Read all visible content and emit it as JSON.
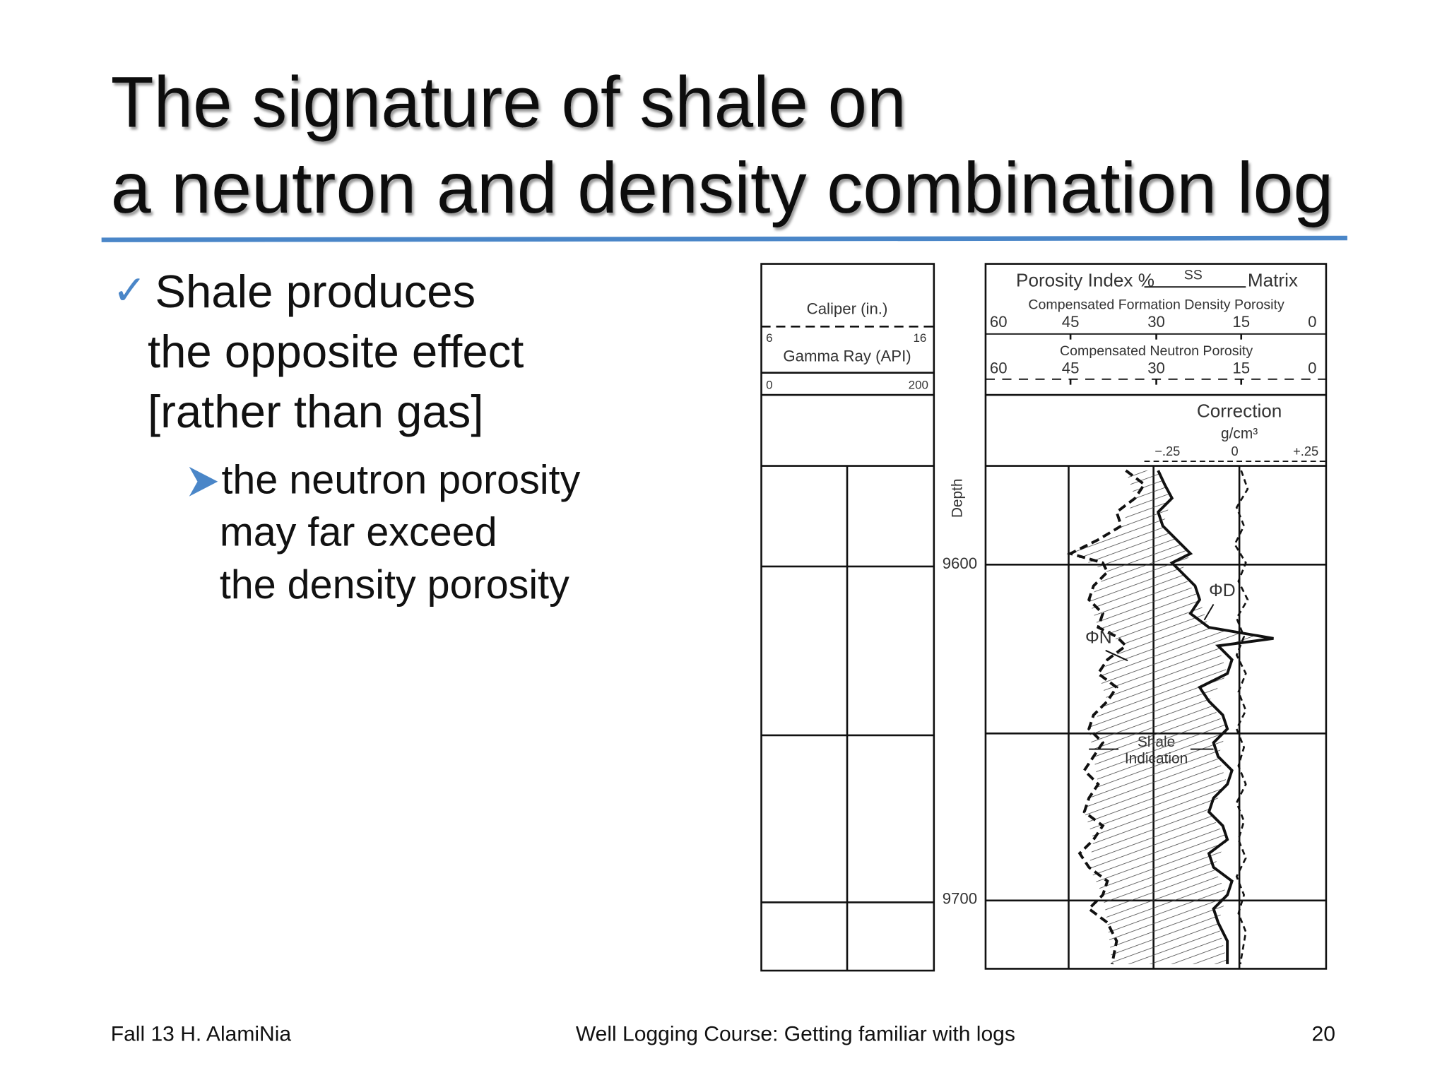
{
  "title": [
    "The signature of shale on",
    "a neutron and density combination log"
  ],
  "bullets": [
    {
      "lines": [
        "Shale produces",
        "the opposite effect",
        "[rather than gas]"
      ],
      "sub": [
        {
          "lines": [
            "the neutron porosity",
            "may far exceed",
            "the density porosity"
          ]
        }
      ]
    }
  ],
  "figure": {
    "caliper": "Caliper (in.)",
    "caliper_scale": [
      "6",
      "16"
    ],
    "gamma_ray": "Gamma Ray (API)",
    "gamma_scale": [
      "0",
      "200"
    ],
    "porosity_index": "Porosity Index %",
    "ss": "SS",
    "matrix": "Matrix",
    "density_porosity": "Compensated Formation Density Porosity",
    "density_scale": [
      "60",
      "45",
      "30",
      "15",
      "0"
    ],
    "neutron_porosity": "Compensated Neutron Porosity",
    "neutron_scale": [
      "60",
      "45",
      "30",
      "15",
      "0"
    ],
    "correction": "Correction",
    "correction_unit": "g/cm³",
    "correction_scale": [
      "−.25",
      "0",
      "+.25"
    ],
    "depth": "Depth",
    "depths": [
      "9600",
      "9700"
    ],
    "phi_d": "ΦD",
    "phi_n": "ΦN",
    "shale": "Shale",
    "indication": "Indication"
  },
  "footer": {
    "left": "Fall 13 H. AlamiNia",
    "center": "Well Logging Course: Getting familiar with logs",
    "right": "20"
  }
}
